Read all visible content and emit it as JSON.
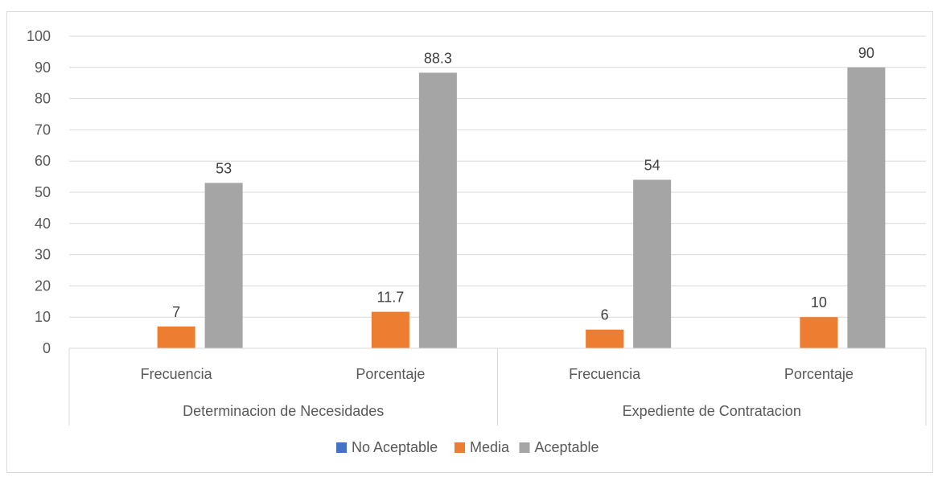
{
  "chart_data": {
    "type": "bar",
    "groups": [
      {
        "label": "Determinacion de Necesidades",
        "categories": [
          "Frecuencia",
          "Porcentaje"
        ]
      },
      {
        "label": "Expediente de Contratacion",
        "categories": [
          "Frecuencia",
          "Porcentaje"
        ]
      }
    ],
    "categories": [
      "Frecuencia",
      "Porcentaje",
      "Frecuencia",
      "Porcentaje"
    ],
    "series": [
      {
        "name": "No Aceptable",
        "color": "#4472C4",
        "values": [
          0,
          0,
          0,
          0
        ],
        "labels": [
          "",
          "",
          "",
          ""
        ]
      },
      {
        "name": "Media",
        "color": "#ED7D31",
        "values": [
          7,
          11.7,
          6,
          10
        ],
        "labels": [
          "7",
          "11.7",
          "6",
          "10"
        ]
      },
      {
        "name": "Aceptable",
        "color": "#A5A5A5",
        "values": [
          53,
          88.3,
          54,
          90
        ],
        "labels": [
          "53",
          "88.3",
          "54",
          "90"
        ]
      }
    ],
    "yticks": [
      "0",
      "10",
      "20",
      "30",
      "40",
      "50",
      "60",
      "70",
      "80",
      "90",
      "100"
    ],
    "ylim": [
      0,
      100
    ],
    "grid": true,
    "legend": "bottom",
    "title": "",
    "xlabel": "",
    "ylabel": ""
  }
}
